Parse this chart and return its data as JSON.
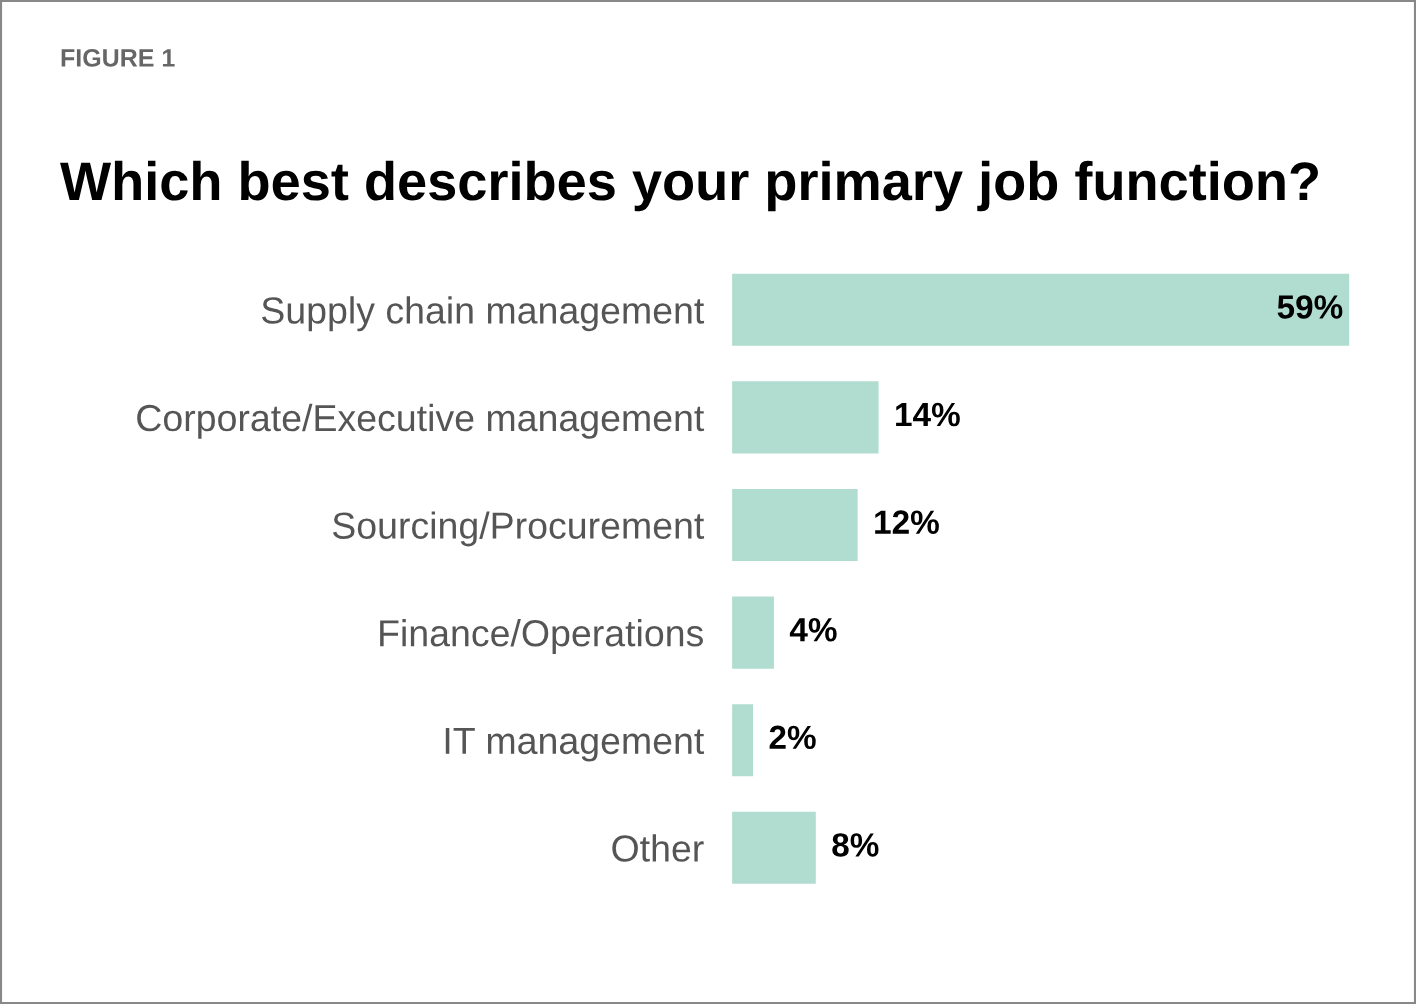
{
  "chart_data": {
    "type": "bar",
    "orientation": "horizontal",
    "title": "Which best describes your primary job function?",
    "annotations": [
      "FIGURE 1"
    ],
    "categories": [
      "Supply chain management",
      "Corporate/Executive management",
      "Sourcing/Procurement",
      "Finance/Operations",
      "IT management",
      "Other"
    ],
    "values": [
      59,
      14,
      12,
      4,
      2,
      8
    ],
    "value_labels": [
      "59%",
      "14%",
      "12%",
      "4%",
      "2%",
      "8%"
    ],
    "color": "#b0ddd0",
    "grid": false,
    "legend": false
  }
}
